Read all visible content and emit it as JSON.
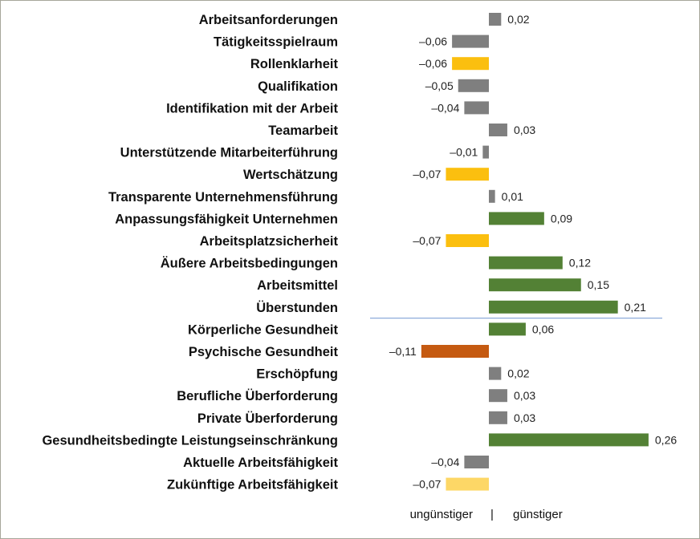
{
  "chart_data": {
    "type": "bar",
    "orientation": "horizontal",
    "title": "",
    "xlabel_left": "ungünstiger",
    "xlabel_separator": "|",
    "xlabel_right": "günstiger",
    "xlim": [
      -0.12,
      0.27
    ],
    "grid": false,
    "colors": {
      "neutral": "#7f7f7f",
      "yellow": "#fbbf0f",
      "light_yellow": "#fdd766",
      "green": "#538135",
      "orange": "#c55a11",
      "separator": "#8eaadb"
    },
    "categories": [
      "Arbeitsanforderungen",
      "Tätigkeitsspielraum",
      "Rollenklarheit",
      "Qualifikation",
      "Identifikation mit der Arbeit",
      "Teamarbeit",
      "Unterstützende Mitarbeiterführung",
      "Wertschätzung",
      "Transparente Unternehmensführung",
      "Anpassungsfähigkeit Unternehmen",
      "Arbeitsplatzsicherheit",
      "Äußere Arbeitsbedingungen",
      "Arbeitsmittel",
      "Überstunden",
      "Körperliche Gesundheit",
      "Psychische Gesundheit",
      "Erschöpfung",
      "Berufliche Überforderung",
      "Private Überforderung",
      "Gesundheitsbedingte Leistungseinschränkung",
      "Aktuelle Arbeitsfähigkeit",
      "Zukünftige Arbeitsfähigkeit"
    ],
    "values": [
      0.02,
      -0.06,
      -0.06,
      -0.05,
      -0.04,
      0.03,
      -0.01,
      -0.07,
      0.01,
      0.09,
      -0.07,
      0.12,
      0.15,
      0.21,
      0.06,
      -0.11,
      0.02,
      0.03,
      0.03,
      0.26,
      -0.04,
      -0.07
    ],
    "value_labels": [
      "0,02",
      "–0,06",
      "–0,06",
      "–0,05",
      "–0,04",
      "0,03",
      "–0,01",
      "–0,07",
      "0,01",
      "0,09",
      "–0,07",
      "0,12",
      "0,15",
      "0,21",
      "0,06",
      "–0,11",
      "0,02",
      "0,03",
      "0,03",
      "0,26",
      "–0,04",
      "–0,07"
    ],
    "bar_color_keys": [
      "neutral",
      "neutral",
      "yellow",
      "neutral",
      "neutral",
      "neutral",
      "neutral",
      "yellow",
      "neutral",
      "green",
      "yellow",
      "green",
      "green",
      "green",
      "green",
      "orange",
      "neutral",
      "neutral",
      "neutral",
      "green",
      "neutral",
      "light_yellow"
    ],
    "separator_after_category": "Überstunden"
  }
}
